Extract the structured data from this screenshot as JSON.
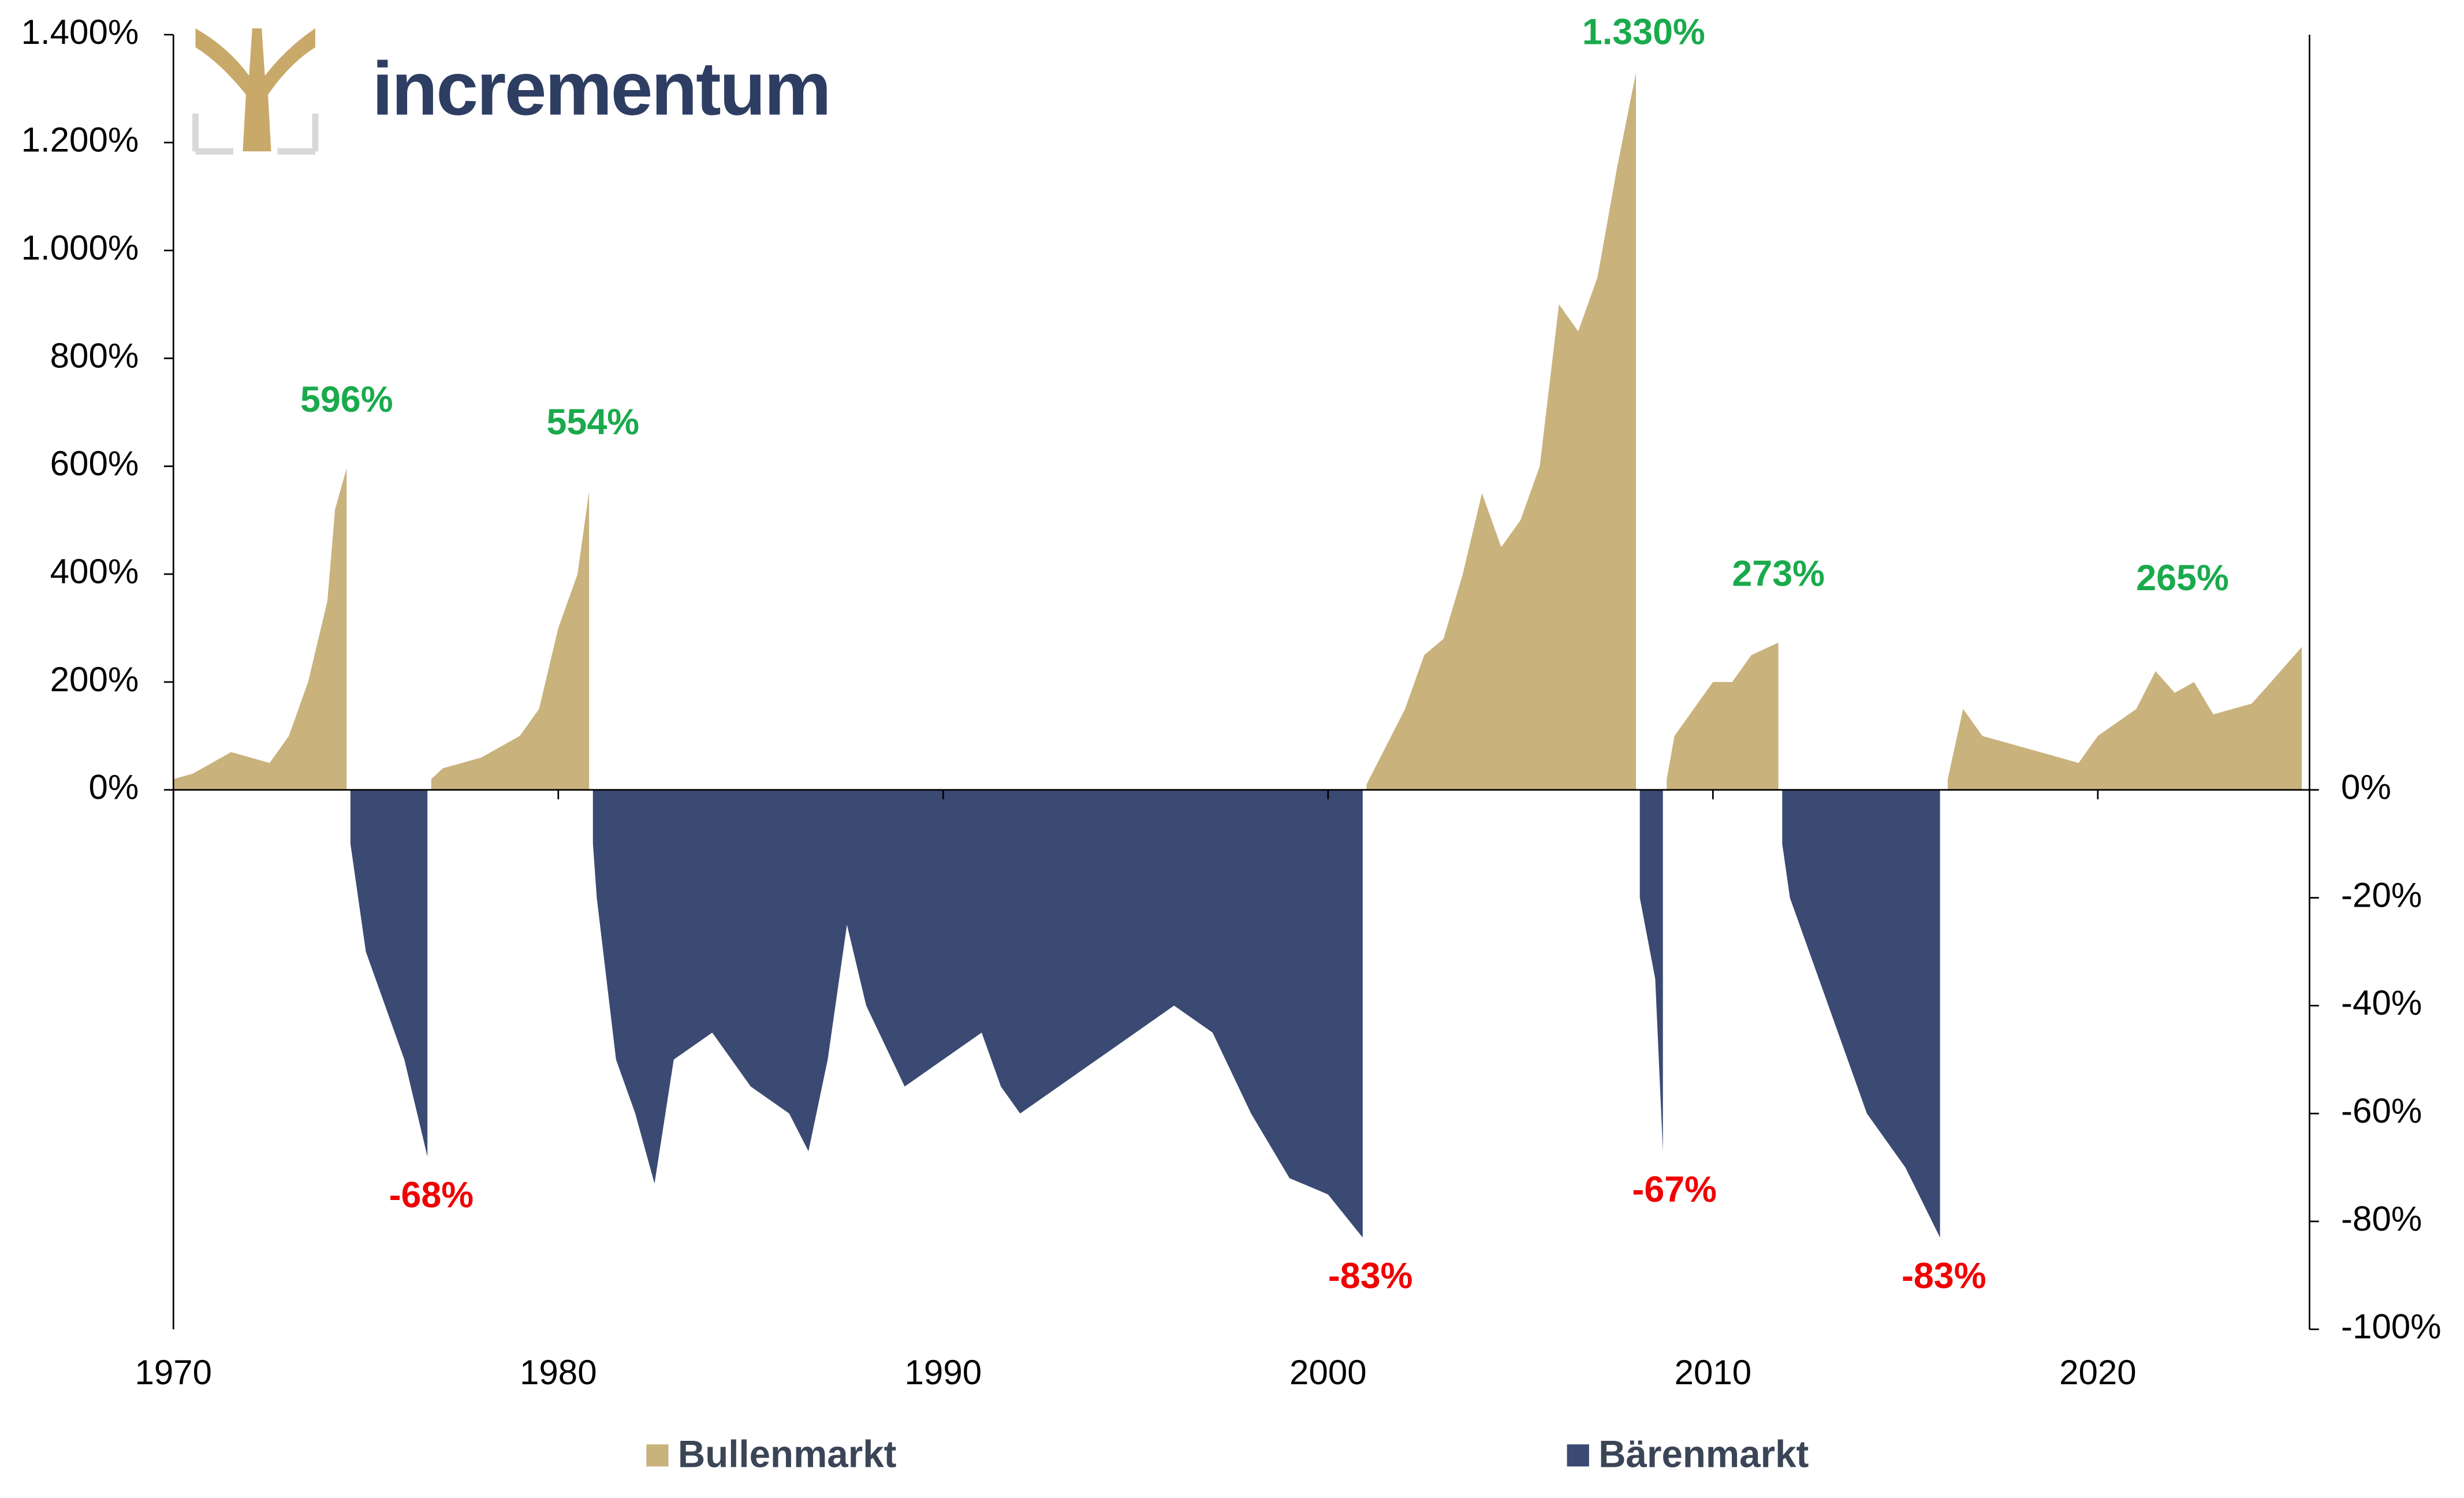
{
  "logo": "incrementum",
  "chart_data": {
    "type": "area",
    "xlim": [
      1970,
      2025.5
    ],
    "xticks": [
      1970,
      1980,
      1990,
      2000,
      2010,
      2020
    ],
    "ylim": [
      -1000,
      1400
    ],
    "yticks": [
      {
        "value": 0,
        "label": "0%"
      },
      {
        "value": 200,
        "label": "200%"
      },
      {
        "value": 400,
        "label": "400%"
      },
      {
        "value": 600,
        "label": "600%"
      },
      {
        "value": 800,
        "label": "800%"
      },
      {
        "value": 1000,
        "label": "1.000%"
      },
      {
        "value": 1200,
        "label": "1.200%"
      },
      {
        "value": 1400,
        "label": "1.400%"
      }
    ],
    "y2lim": [
      -100,
      140
    ],
    "y2ticks": [
      {
        "value": 0,
        "label": "0%"
      },
      {
        "value": -20,
        "label": "-20%"
      },
      {
        "value": -40,
        "label": "-40%"
      },
      {
        "value": -60,
        "label": "-60%"
      },
      {
        "value": -80,
        "label": "-80%"
      },
      {
        "value": -100,
        "label": "-100%"
      }
    ],
    "series": [
      {
        "name": "Bullenmarkt",
        "color": "#c9b27c",
        "x": [
          1970,
          1970.5,
          1971,
          1971.5,
          1972,
          1972.5,
          1973,
          1973.5,
          1974,
          1974.2,
          1974.5,
          1975,
          1976.7,
          1977,
          1978,
          1979,
          1979.5,
          1980,
          1980.5,
          1980.8,
          1990,
          2001,
          2001.5,
          2002,
          2002.5,
          2003,
          2003.5,
          2004,
          2004.5,
          2005,
          2005.5,
          2006,
          2006.5,
          2007,
          2007.5,
          2008,
          2008.4,
          2008.8,
          2009,
          2009.5,
          2010,
          2010.5,
          2011,
          2011.7,
          2014,
          2016.1,
          2016.5,
          2017,
          2018,
          2019,
          2019.5,
          2020,
          2021,
          2021.5,
          2022,
          2022.5,
          2023,
          2023.5,
          2024,
          2024.5,
          2025.3
        ],
        "values": [
          20,
          30,
          50,
          70,
          60,
          50,
          100,
          200,
          350,
          520,
          596,
          null,
          20,
          40,
          60,
          100,
          150,
          300,
          400,
          554,
          null,
          10,
          80,
          150,
          250,
          280,
          400,
          550,
          450,
          500,
          600,
          900,
          850,
          950,
          1150,
          1330,
          null,
          20,
          100,
          150,
          200,
          200,
          250,
          273,
          null,
          20,
          150,
          100,
          80,
          60,
          50,
          100,
          150,
          220,
          180,
          200,
          140,
          150,
          160,
          200,
          265
        ]
      },
      {
        "name": "Bärenmarkt",
        "color": "#3b4a72",
        "axis": "y2",
        "x": [
          1974.6,
          1975,
          1975.5,
          1976,
          1976.6,
          1978,
          1980.9,
          1981,
          1981.5,
          1982,
          1982.5,
          1983,
          1984,
          1985,
          1986,
          1986.5,
          1987,
          1987.5,
          1988,
          1989,
          1990,
          1991,
          1991.5,
          1992,
          1993,
          1994,
          1995,
          1996,
          1997,
          1998,
          1999,
          2000,
          2000.9,
          2005,
          2008.1,
          2008.5,
          2008.7,
          2010,
          2011.8,
          2012,
          2013,
          2014,
          2015,
          2015.9
        ],
        "values": [
          -10,
          -30,
          -40,
          -50,
          -68,
          null,
          -10,
          -20,
          -50,
          -60,
          -73,
          -50,
          -45,
          -55,
          -60,
          -67,
          -50,
          -25,
          -40,
          -55,
          -50,
          -45,
          -55,
          -60,
          -55,
          -50,
          -45,
          -40,
          -45,
          -60,
          -72,
          -75,
          -83,
          null,
          -20,
          -35,
          -67,
          null,
          -10,
          -20,
          -40,
          -60,
          -70,
          -83
        ]
      }
    ],
    "annotations": [
      {
        "text": "596%",
        "x": 1974.5,
        "value": 596
      },
      {
        "text": "554%",
        "x": 1980.9,
        "value": 554
      },
      {
        "text": "1.330%",
        "x": 2008.2,
        "value": 1330
      },
      {
        "text": "273%",
        "x": 2011.7,
        "value": 273
      },
      {
        "text": "265%",
        "x": 2022.2,
        "value": 265
      },
      {
        "text": "-68%",
        "x": 1976.7,
        "value": -68,
        "axis": "y2"
      },
      {
        "text": "-83%",
        "x": 2001.1,
        "value": -83,
        "axis": "y2"
      },
      {
        "text": "-67%",
        "x": 2009,
        "value": -67,
        "axis": "y2"
      },
      {
        "text": "-83%",
        "x": 2016,
        "value": -83,
        "axis": "y2"
      }
    ]
  }
}
